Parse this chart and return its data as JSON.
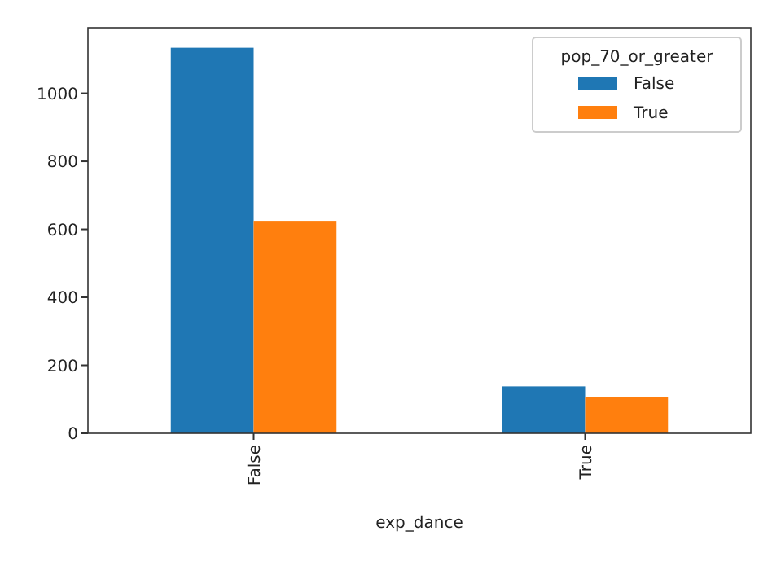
{
  "chart_data": {
    "type": "bar",
    "xlabel": "exp_dance",
    "legend_title": "pop_70_or_greater",
    "categories": [
      "False",
      "True"
    ],
    "series": [
      {
        "name": "False",
        "color": "#1f77b4",
        "values": [
          1134,
          138
        ]
      },
      {
        "name": "True",
        "color": "#ff7f0e",
        "values": [
          625,
          107
        ]
      }
    ],
    "ylim": [
      0,
      1193
    ],
    "yticks": [
      0,
      200,
      400,
      600,
      800,
      1000
    ],
    "legend": "top right",
    "grid": false
  }
}
